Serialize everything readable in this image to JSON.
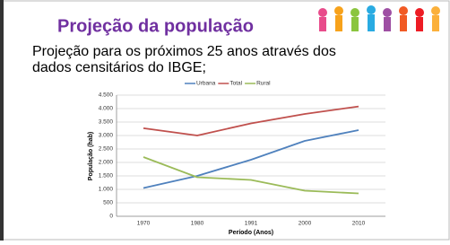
{
  "slide_title": "Projeção da população",
  "subtitle_lines": [
    "Projeção para os próximos 25 anos através dos",
    "dados censitários do IBGE;"
  ],
  "chart_data": {
    "type": "line",
    "x_label": "Período (Anos)",
    "y_label": "População (hab)",
    "categories": [
      "1970",
      "1980",
      "1991",
      "2000",
      "2010"
    ],
    "series": [
      {
        "name": "Urbana",
        "color": "#4f81bd",
        "values": [
          1050,
          1500,
          2100,
          2800,
          3200
        ]
      },
      {
        "name": "Total",
        "color": "#c0504d",
        "values": [
          3270,
          3000,
          3450,
          3800,
          4080
        ]
      },
      {
        "name": "Rural",
        "color": "#9bbb59",
        "values": [
          2200,
          1450,
          1350,
          950,
          850
        ]
      }
    ],
    "ylim": [
      0,
      4500
    ],
    "yticks": [
      0,
      500,
      {
        "value": 1000,
        "label": "1.000"
      },
      {
        "value": 1500,
        "label": "1.500"
      },
      {
        "value": 2000,
        "label": "2.000"
      },
      {
        "value": 2500,
        "label": "2.500"
      },
      {
        "value": 3000,
        "label": "3.000"
      },
      {
        "value": 3500,
        "label": "3.500"
      },
      {
        "value": 4000,
        "label": "4.000"
      },
      {
        "value": 4500,
        "label": "4.500"
      }
    ],
    "grid": true,
    "legend": "top"
  }
}
